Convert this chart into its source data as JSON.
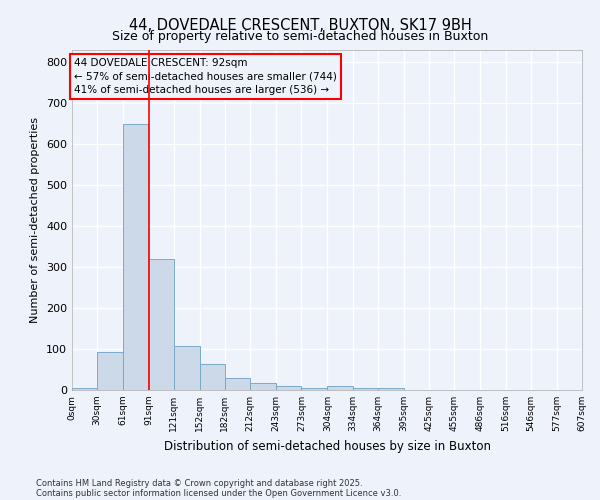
{
  "title": "44, DOVEDALE CRESCENT, BUXTON, SK17 9BH",
  "subtitle": "Size of property relative to semi-detached houses in Buxton",
  "xlabel": "Distribution of semi-detached houses by size in Buxton",
  "ylabel": "Number of semi-detached properties",
  "bin_edges": [
    0,
    30,
    61,
    91,
    121,
    152,
    182,
    212,
    243,
    273,
    304,
    334,
    364,
    395,
    425,
    455,
    486,
    516,
    546,
    577,
    607
  ],
  "bin_labels": [
    "0sqm",
    "30sqm",
    "61sqm",
    "91sqm",
    "121sqm",
    "152sqm",
    "182sqm",
    "212sqm",
    "243sqm",
    "273sqm",
    "304sqm",
    "334sqm",
    "364sqm",
    "395sqm",
    "425sqm",
    "455sqm",
    "486sqm",
    "516sqm",
    "546sqm",
    "577sqm",
    "607sqm"
  ],
  "bar_heights": [
    5,
    93,
    650,
    320,
    107,
    63,
    30,
    17,
    10,
    5,
    10,
    5,
    5,
    0,
    0,
    0,
    0,
    0,
    0,
    0
  ],
  "bar_color": "#ccd9e8",
  "bar_edge_color": "#7aaac8",
  "property_line_x": 92,
  "property_line_color": "red",
  "ylim": [
    0,
    830
  ],
  "yticks": [
    0,
    100,
    200,
    300,
    400,
    500,
    600,
    700,
    800
  ],
  "annotation_text": "44 DOVEDALE CRESCENT: 92sqm\n← 57% of semi-detached houses are smaller (744)\n41% of semi-detached houses are larger (536) →",
  "annotation_box_color": "red",
  "footer_line1": "Contains HM Land Registry data © Crown copyright and database right 2025.",
  "footer_line2": "Contains public sector information licensed under the Open Government Licence v3.0.",
  "background_color": "#eef2fb",
  "grid_color": "#ffffff"
}
